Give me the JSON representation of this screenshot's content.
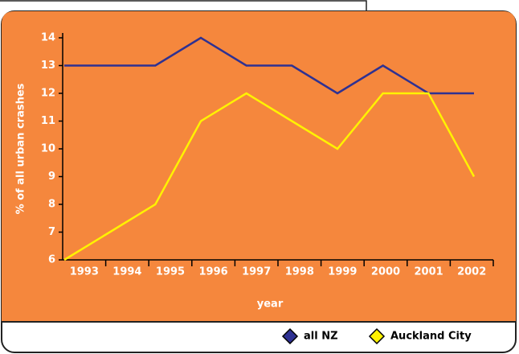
{
  "chart_data": {
    "type": "line",
    "x_label": "year",
    "y_label": "% of all urban crashes",
    "categories": [
      "1993",
      "1994",
      "1995",
      "1996",
      "1997",
      "1998",
      "1999",
      "2000",
      "2001",
      "2002"
    ],
    "series": [
      {
        "name": "all NZ",
        "color": "#2e3192",
        "values": [
          13,
          13,
          13,
          14,
          13,
          13,
          12,
          13,
          12,
          12
        ]
      },
      {
        "name": "Auckland City",
        "color": "#fff200",
        "values": [
          6,
          7,
          8,
          11,
          12,
          11,
          10,
          12,
          12,
          9
        ]
      }
    ],
    "ylim": [
      6,
      14
    ],
    "yticks": [
      6,
      7,
      8,
      9,
      10,
      11,
      12,
      13,
      14
    ],
    "legend": "bottom-right"
  }
}
